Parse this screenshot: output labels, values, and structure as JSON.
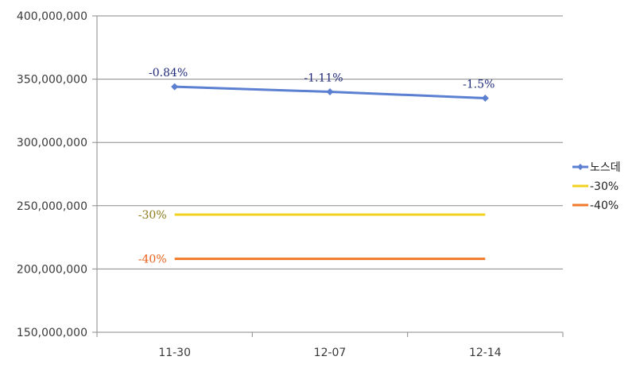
{
  "chart_data": {
    "type": "line",
    "categories": [
      "11-30",
      "12-07",
      "12-14"
    ],
    "ylim": [
      150000000,
      400000000
    ],
    "yticks": [
      150000000,
      200000000,
      250000000,
      300000000,
      350000000,
      400000000
    ],
    "ytick_labels": [
      "150,000,000",
      "200,000,000",
      "250,000,000",
      "300,000,000",
      "350,000,000",
      "400,000,000"
    ],
    "grid": true,
    "legend_position": "right",
    "series": [
      {
        "name": "노스데",
        "values": [
          344000000,
          340000000,
          335000000
        ],
        "color": "#5b7fd1",
        "marker": "diamond",
        "labels": [
          "-0.84%",
          "-1.11%",
          "-1.5%"
        ],
        "label_color": "#1f2a7a"
      },
      {
        "name": "-30%",
        "values": [
          243000000,
          243000000,
          243000000
        ],
        "color": "#f2d21f",
        "marker": "none",
        "labels": [
          "-30%"
        ],
        "label_color": "#8a7a1a"
      },
      {
        "name": "-40%",
        "values": [
          208000000,
          208000000,
          208000000
        ],
        "color": "#f07a2a",
        "marker": "none",
        "labels": [
          "-40%"
        ],
        "label_color": "#e8601a"
      }
    ]
  }
}
